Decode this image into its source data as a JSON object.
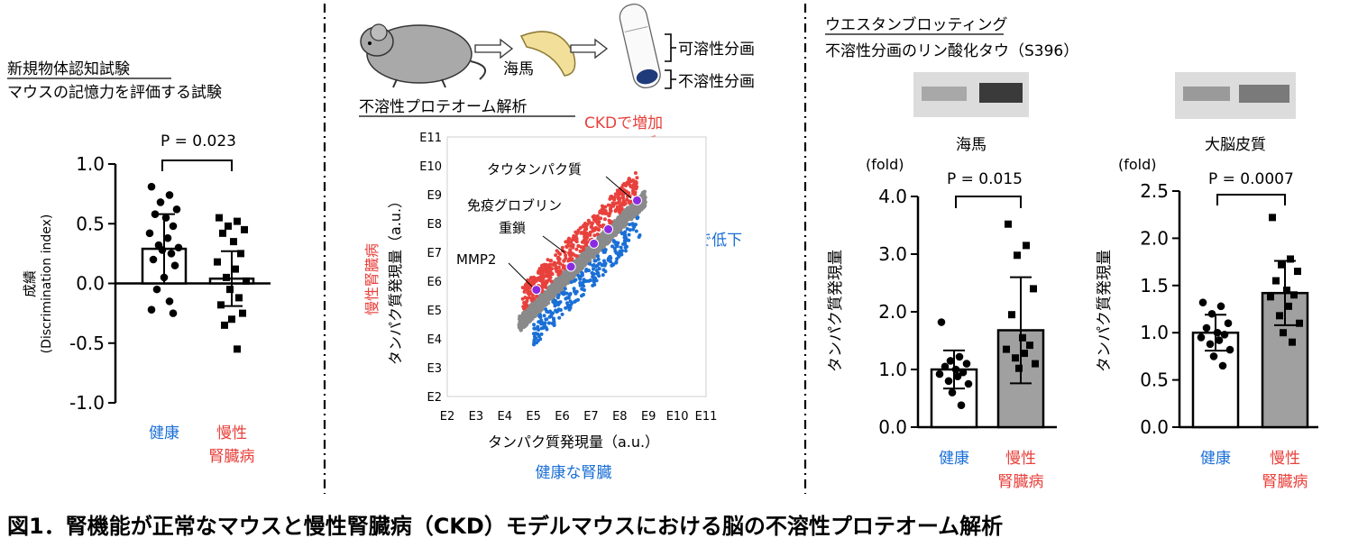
{
  "figure": {
    "caption": "図1．腎機能が正常なマウスと慢性腎臓病（CKD）モデルマウスにおける脳の不溶性プロテオーム解析"
  },
  "colors": {
    "red": "#e8413c",
    "blue": "#1a6fd6",
    "gray": "#8a8a8a",
    "barGray": "#a0a0a0",
    "purple": "#8a2be2"
  },
  "left_panel": {
    "title": "新規物体認知試験",
    "subtitle": "マウスの記憶力を評価する試験",
    "ylabel_line1": "成績",
    "ylabel_line2": "(Discrimination index)",
    "pvalue": "P = 0.023",
    "xlabel_healthy": "健康",
    "xlabel_ckd_line1": "慢性",
    "xlabel_ckd_line2": "腎臓病"
  },
  "middle_panel": {
    "hippocampus_label": "海馬",
    "soluble_label": "可溶性分画",
    "insoluble_label": "不溶性分画",
    "title": "不溶性プロテオーム解析",
    "ckd_up": "CKDで増加",
    "ckd_down": "CKDで低下",
    "tau": "タウタンパク質",
    "ig_line1": "免疫グロブリン",
    "ig_line2": "重鎖",
    "mmp2": "MMP2",
    "ylabel": "タンパク質発現量（a.u.）",
    "ylabel_side": "慢性腎臓病",
    "xlabel": "タンパク質発現量（a.u.）",
    "xlabel_bottom": "健康な腎臓"
  },
  "right_panel": {
    "title": "ウエスタンブロッティング",
    "subtitle": "不溶性分画のリン酸化タウ（S396）",
    "hippocampus_label": "海馬",
    "cortex_label": "大脳皮質",
    "fold_label": "(fold)",
    "ylabel": "タンパク質発現量",
    "pvalue_hippo": "P = 0.015",
    "pvalue_cortex": "P = 0.0007",
    "xlabel_healthy": "健康",
    "xlabel_ckd_line1": "慢性",
    "xlabel_ckd_line2": "腎臓病"
  },
  "chart_data": [
    {
      "type": "bar",
      "id": "discrimination",
      "categories": [
        "健康",
        "慢性腎臓病"
      ],
      "means": [
        0.29,
        0.04
      ],
      "sd": [
        0.29,
        0.23
      ],
      "ylim": [
        -1.0,
        1.0
      ],
      "yticks": [
        "-1.0",
        "-0.5",
        "0.0",
        "0.5",
        "1.0"
      ],
      "points": [
        [
          0.81,
          0.74,
          0.68,
          0.62,
          0.58,
          0.55,
          0.48,
          0.42,
          0.38,
          0.32,
          0.3,
          0.28,
          0.25,
          0.2,
          0.15,
          0.05,
          -0.05,
          -0.15,
          -0.22,
          -0.25
        ],
        [
          0.55,
          0.52,
          0.48,
          0.45,
          0.42,
          0.35,
          0.25,
          0.18,
          0.12,
          0.05,
          0.02,
          -0.05,
          -0.12,
          -0.18,
          -0.25,
          -0.3,
          -0.35,
          -0.55
        ]
      ]
    },
    {
      "type": "scatter",
      "id": "proteome",
      "xticks": [
        "E2",
        "E3",
        "E4",
        "E5",
        "E6",
        "E7",
        "E8",
        "E9",
        "E10",
        "E11"
      ],
      "yticks": [
        "E2",
        "E3",
        "E4",
        "E5",
        "E6",
        "E7",
        "E8",
        "E9",
        "E10",
        "E11"
      ],
      "xlim": [
        2,
        11
      ],
      "ylim": [
        2,
        11
      ],
      "highlighted": [
        {
          "label": "MMP2",
          "x": 5.1,
          "y": 5.7
        },
        {
          "label": "免疫グロブリン重鎖",
          "x": 6.3,
          "y": 6.5
        },
        {
          "label": "",
          "x": 7.1,
          "y": 7.3
        },
        {
          "label": "",
          "x": 7.6,
          "y": 7.8
        },
        {
          "label": "タウタンパク質",
          "x": 8.6,
          "y": 8.8
        }
      ]
    },
    {
      "type": "bar",
      "id": "western_hippocampus",
      "categories": [
        "健康",
        "慢性腎臓病"
      ],
      "means": [
        1.0,
        1.68
      ],
      "sd": [
        0.33,
        0.92
      ],
      "ylim": [
        0,
        4.0
      ],
      "yticks": [
        "0.0",
        "1.0",
        "2.0",
        "3.0",
        "4.0"
      ],
      "points": [
        [
          1.82,
          1.22,
          1.15,
          1.1,
          1.05,
          1.0,
          0.95,
          0.92,
          0.88,
          0.8,
          0.75,
          0.6,
          0.38
        ],
        [
          3.52,
          3.15,
          2.98,
          2.4,
          1.95,
          1.55,
          1.42,
          1.35,
          1.28,
          1.2,
          1.1,
          1.02
        ]
      ]
    },
    {
      "type": "bar",
      "id": "western_cortex",
      "categories": [
        "健康",
        "慢性腎臓病"
      ],
      "means": [
        1.0,
        1.42
      ],
      "sd": [
        0.19,
        0.34
      ],
      "ylim": [
        0,
        2.5
      ],
      "yticks": [
        "0.0",
        "0.5",
        "1.0",
        "1.5",
        "2.0",
        "2.5"
      ],
      "points": [
        [
          1.32,
          1.28,
          1.2,
          1.1,
          1.05,
          1.0,
          0.98,
          0.95,
          0.92,
          0.88,
          0.82,
          0.75,
          0.65
        ],
        [
          2.22,
          1.78,
          1.72,
          1.65,
          1.55,
          1.45,
          1.4,
          1.38,
          1.28,
          1.18,
          1.1,
          1.0,
          0.9
        ]
      ]
    }
  ]
}
